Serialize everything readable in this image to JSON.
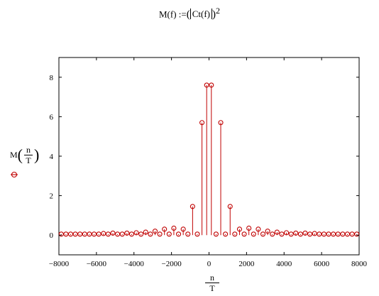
{
  "formula": {
    "lhs": "M(f)",
    "assign": ":=",
    "inner": "Ct(f)",
    "power": "2"
  },
  "y_label": {
    "fn": "M",
    "num": "n",
    "den": "T"
  },
  "x_label": {
    "num": "n",
    "den": "T"
  },
  "colors": {
    "series": "#c00000",
    "axis": "#000000"
  },
  "chart_data": {
    "type": "scatter",
    "style": "stem",
    "marker": "circle-with-dash",
    "xlim": [
      -8000,
      8000
    ],
    "ylim": [
      -1,
      9
    ],
    "x_ticks": [
      -8000,
      -6000,
      -4000,
      -2000,
      0,
      2000,
      4000,
      6000,
      8000
    ],
    "y_ticks": [
      0,
      2,
      4,
      6,
      8
    ],
    "x_tick_labels": [
      "−8000",
      "−6000",
      "−4000",
      "−2000",
      "0",
      "2000",
      "4000",
      "6000",
      "8000"
    ],
    "y_tick_labels": [
      "0",
      "2",
      "4",
      "6",
      "8"
    ],
    "grid": false,
    "x": [
      -7875,
      -7625,
      -7375,
      -7125,
      -6875,
      -6625,
      -6375,
      -6125,
      -5875,
      -5625,
      -5375,
      -5125,
      -4875,
      -4625,
      -4375,
      -4125,
      -3875,
      -3625,
      -3375,
      -3125,
      -2875,
      -2625,
      -2375,
      -2125,
      -1875,
      -1625,
      -1375,
      -1125,
      -875,
      -625,
      -375,
      -125,
      125,
      375,
      625,
      875,
      1125,
      1375,
      1625,
      1875,
      2125,
      2375,
      2625,
      2875,
      3125,
      3375,
      3625,
      3875,
      4125,
      4375,
      4625,
      4875,
      5125,
      5375,
      5625,
      5875,
      6125,
      6375,
      6625,
      6875,
      7125,
      7375,
      7625,
      7875
    ],
    "values": [
      0.05,
      0.05,
      0.05,
      0.05,
      0.05,
      0.05,
      0.05,
      0.05,
      0.05,
      0.08,
      0.05,
      0.1,
      0.05,
      0.05,
      0.1,
      0.05,
      0.12,
      0.05,
      0.15,
      0.05,
      0.2,
      0.05,
      0.3,
      0.05,
      0.35,
      0.05,
      0.3,
      0.05,
      1.45,
      0.05,
      5.7,
      7.6,
      7.6,
      0.05,
      5.7,
      0.05,
      1.45,
      0.05,
      0.3,
      0.05,
      0.35,
      0.05,
      0.3,
      0.05,
      0.2,
      0.05,
      0.15,
      0.05,
      0.12,
      0.05,
      0.1,
      0.05,
      0.1,
      0.05,
      0.08,
      0.05,
      0.05,
      0.05,
      0.05,
      0.05,
      0.05,
      0.05,
      0.05,
      0.05
    ]
  }
}
